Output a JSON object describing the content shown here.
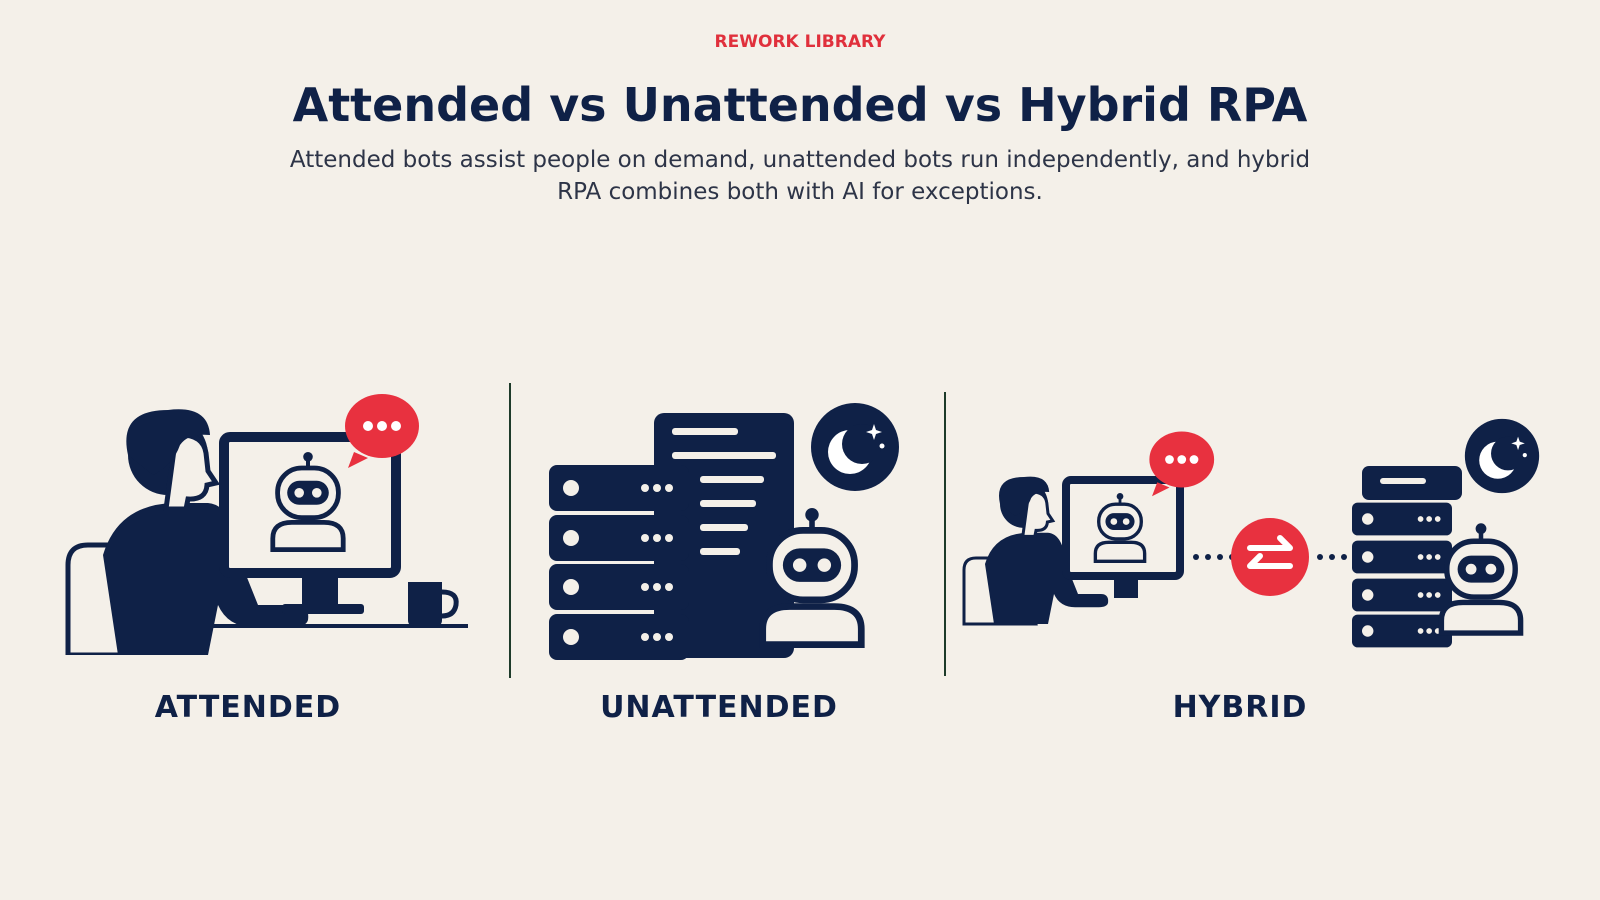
{
  "header": {
    "eyebrow": "REWORK LIBRARY",
    "title": "Attended vs Unattended vs Hybrid RPA",
    "subtitle": "Attended bots assist people on demand, unattended bots run independently, and hybrid RPA combines both with AI for exceptions."
  },
  "panels": [
    {
      "label": "ATTENDED"
    },
    {
      "label": "UNATTENDED"
    },
    {
      "label": "HYBRID"
    }
  ]
}
